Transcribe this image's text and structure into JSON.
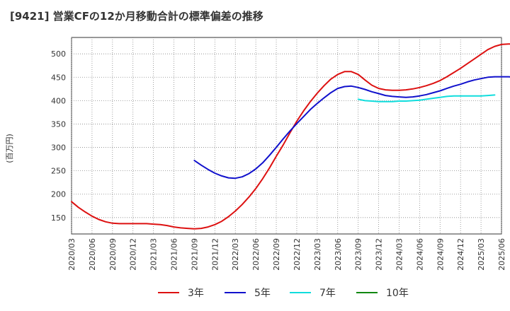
{
  "chart_data": {
    "type": "line",
    "title": "[9421]  営業CFの12か月移動合計の標準偏差の推移",
    "ylabel": "(百万円)",
    "xlabel": "",
    "ylim": [
      115,
      535
    ],
    "yticks": [
      150,
      200,
      250,
      300,
      350,
      400,
      450,
      500
    ],
    "ytick_labels": [
      "150",
      "200",
      "250",
      "300",
      "350",
      "400",
      "450",
      "500"
    ],
    "x_categories": [
      "2020/03",
      "2020/06",
      "2020/09",
      "2020/12",
      "2021/03",
      "2021/06",
      "2021/09",
      "2021/12",
      "2022/03",
      "2022/06",
      "2022/09",
      "2022/12",
      "2023/03",
      "2023/06",
      "2023/09",
      "2023/12",
      "2024/03",
      "2024/06",
      "2024/09",
      "2024/12",
      "2025/03",
      "2025/06"
    ],
    "grid": true,
    "legend_position": "bottom",
    "series": [
      {
        "name": "3年",
        "color": "#dd1111",
        "start_index": 0,
        "values": [
          184,
          172,
          162,
          153,
          146,
          141,
          138,
          137,
          137,
          137,
          137,
          137,
          136,
          135,
          133,
          130,
          128,
          127,
          126,
          127,
          130,
          135,
          142,
          152,
          164,
          178,
          194,
          212,
          233,
          256,
          281,
          305,
          331,
          356,
          378,
          398,
          416,
          432,
          446,
          456,
          462,
          462,
          456,
          444,
          433,
          426,
          423,
          422,
          422,
          423,
          425,
          428,
          432,
          437,
          443,
          451,
          460,
          469,
          479,
          489,
          499,
          509,
          516,
          520,
          521,
          521,
          521,
          521,
          520
        ]
      },
      {
        "name": "5年",
        "color": "#1111cc",
        "start_index": 18,
        "values": [
          272,
          262,
          253,
          245,
          239,
          235,
          234,
          237,
          244,
          254,
          267,
          283,
          300,
          318,
          335,
          351,
          366,
          381,
          394,
          406,
          417,
          426,
          430,
          431,
          428,
          424,
          419,
          415,
          411,
          409,
          408,
          407,
          408,
          410,
          413,
          417,
          421,
          426,
          431,
          435,
          440,
          444,
          447,
          450,
          451,
          451,
          451,
          450,
          450,
          450,
          450
        ]
      },
      {
        "name": "7年",
        "color": "#11dddd",
        "start_index": 42,
        "values": [
          403,
          400,
          399,
          398,
          398,
          398,
          399,
          399,
          400,
          401,
          403,
          405,
          407,
          409,
          410,
          410,
          410,
          410,
          410,
          411,
          412
        ]
      },
      {
        "name": "10年",
        "color": "#118811",
        "start_index": 0,
        "values": []
      }
    ]
  }
}
